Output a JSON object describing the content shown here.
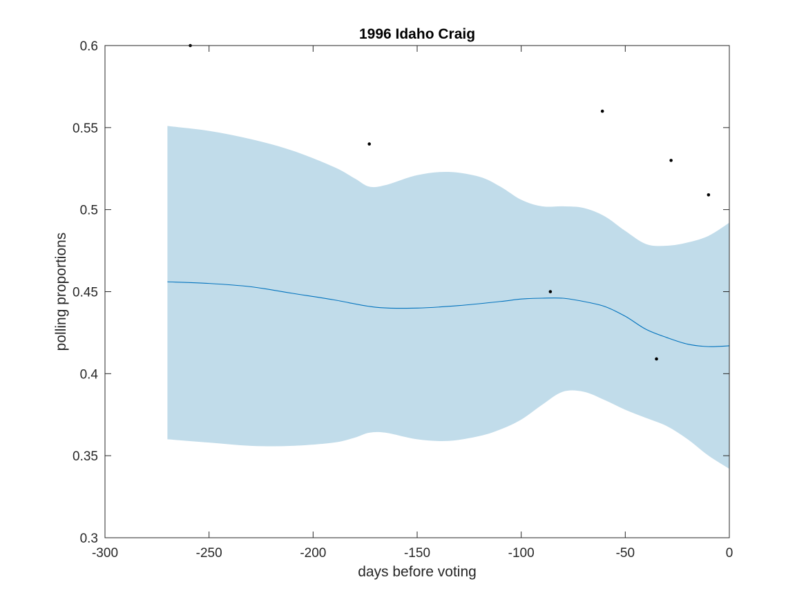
{
  "chart_data": {
    "type": "line",
    "title": "1996 Idaho Craig",
    "xlabel": "days before voting",
    "ylabel": "polling proportions",
    "xlim": [
      -300,
      0
    ],
    "ylim": [
      0.3,
      0.6
    ],
    "xticks": [
      -300,
      -250,
      -200,
      -150,
      -100,
      -50,
      0
    ],
    "yticks": [
      0.3,
      0.35,
      0.4,
      0.45,
      0.5,
      0.55,
      0.6
    ],
    "xtick_labels": [
      "-300",
      "-250",
      "-200",
      "-150",
      "-100",
      "-50",
      "0"
    ],
    "ytick_labels": [
      "0.3",
      "0.35",
      "0.4",
      "0.45",
      "0.5",
      "0.55",
      "0.6"
    ],
    "grid": false,
    "colors": {
      "band": "#c1dcea",
      "line": "#0072bd",
      "points": "#000000",
      "axes": "#262626"
    },
    "band": {
      "x": [
        -270,
        -250,
        -230,
        -210,
        -190,
        -180,
        -173,
        -165,
        -150,
        -135,
        -120,
        -110,
        -100,
        -90,
        -80,
        -70,
        -60,
        -50,
        -40,
        -30,
        -20,
        -10,
        0
      ],
      "upper": [
        0.551,
        0.548,
        0.543,
        0.536,
        0.526,
        0.519,
        0.514,
        0.515,
        0.521,
        0.523,
        0.52,
        0.514,
        0.506,
        0.502,
        0.502,
        0.501,
        0.496,
        0.487,
        0.479,
        0.478,
        0.48,
        0.484,
        0.492
      ],
      "lower": [
        0.36,
        0.358,
        0.356,
        0.356,
        0.358,
        0.361,
        0.364,
        0.364,
        0.36,
        0.359,
        0.362,
        0.366,
        0.372,
        0.381,
        0.389,
        0.389,
        0.384,
        0.378,
        0.373,
        0.368,
        0.36,
        0.35,
        0.342
      ]
    },
    "series": [
      {
        "x": [
          -270,
          -250,
          -230,
          -210,
          -190,
          -170,
          -150,
          -130,
          -110,
          -100,
          -90,
          -80,
          -70,
          -60,
          -50,
          -40,
          -30,
          -20,
          -10,
          0
        ],
        "values": [
          0.456,
          0.455,
          0.453,
          0.449,
          0.445,
          0.4405,
          0.44,
          0.4415,
          0.444,
          0.4455,
          0.446,
          0.446,
          0.444,
          0.441,
          0.435,
          0.427,
          0.422,
          0.418,
          0.4165,
          0.417
        ]
      }
    ],
    "points": [
      {
        "x": -259,
        "y": 0.6
      },
      {
        "x": -173,
        "y": 0.54
      },
      {
        "x": -86,
        "y": 0.45
      },
      {
        "x": -61,
        "y": 0.56
      },
      {
        "x": -35,
        "y": 0.409
      },
      {
        "x": -28,
        "y": 0.53
      },
      {
        "x": -10,
        "y": 0.509
      }
    ]
  }
}
